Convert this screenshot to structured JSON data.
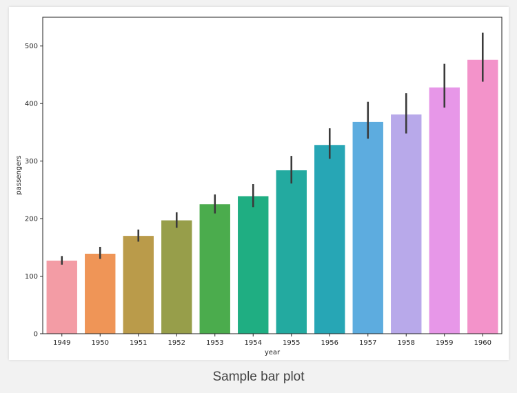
{
  "caption": "Sample bar plot",
  "chart_data": {
    "type": "bar",
    "title": "",
    "xlabel": "year",
    "ylabel": "passengers",
    "ylim": [
      0,
      550
    ],
    "yticks": [
      0,
      100,
      200,
      300,
      400,
      500
    ],
    "grid": false,
    "categories": [
      "1949",
      "1950",
      "1951",
      "1952",
      "1953",
      "1954",
      "1955",
      "1956",
      "1957",
      "1958",
      "1959",
      "1960"
    ],
    "values": [
      127,
      139,
      170,
      197,
      225,
      239,
      284,
      328,
      368,
      381,
      428,
      476
    ],
    "error_low": [
      120,
      130,
      160,
      184,
      209,
      220,
      261,
      304,
      339,
      348,
      393,
      438
    ],
    "error_high": [
      135,
      151,
      181,
      211,
      242,
      260,
      309,
      357,
      403,
      418,
      469,
      523
    ],
    "colors": [
      "#f39ca5",
      "#ef9557",
      "#ba9b4a",
      "#979e4a",
      "#4bac4d",
      "#1fae82",
      "#23aaa0",
      "#27a6b5",
      "#5dacdf",
      "#b8a9ea",
      "#e797e8",
      "#f393ca"
    ],
    "error_bar_color": "#3a3a3a"
  }
}
